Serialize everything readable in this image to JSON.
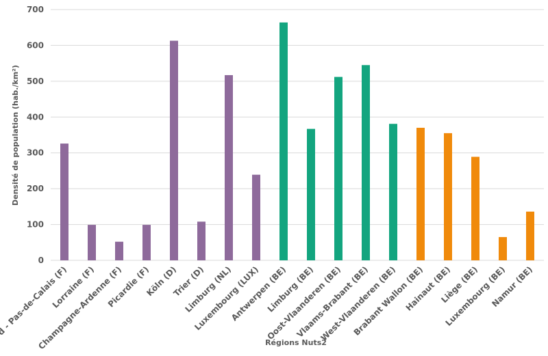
{
  "chart_data": {
    "type": "bar",
    "xlabel": "Régions Nuts2",
    "ylabel": "Densité de population (hab./km²)",
    "ylim": [
      0,
      700
    ],
    "yticks": [
      0,
      100,
      200,
      300,
      400,
      500,
      600,
      700
    ],
    "grid": true,
    "categories": [
      "Nord - Pas-de-Calais (F)",
      "Lorraine (F)",
      "Champagne-Ardenne (F)",
      "Picardie (F)",
      "Köln (D)",
      "Trier (D)",
      "Limburg (NL)",
      "Luxembourg (LUX)",
      "Antwerpen (BE)",
      "Limburg (BE)",
      "Oost-Vlaanderen (BE)",
      "Vlaams-Brabant (BE)",
      "West-Vlaanderen (BE)",
      "Brabant Wallon (BE)",
      "Hainaut (BE)",
      "Liège (BE)",
      "Luxembourg (BE)",
      "Namur (BE)"
    ],
    "values": [
      326,
      99,
      52,
      99,
      613,
      108,
      517,
      239,
      664,
      367,
      512,
      545,
      381,
      370,
      355,
      289,
      65,
      136
    ],
    "bar_colors": [
      "#8e6a9b",
      "#8e6a9b",
      "#8e6a9b",
      "#8e6a9b",
      "#8e6a9b",
      "#8e6a9b",
      "#8e6a9b",
      "#8e6a9b",
      "#13a57f",
      "#13a57f",
      "#13a57f",
      "#13a57f",
      "#13a57f",
      "#f08a0b",
      "#f08a0b",
      "#f08a0b",
      "#f08a0b",
      "#f08a0b"
    ],
    "grid_color": "#d9d9d9",
    "text_color": "#595959"
  }
}
